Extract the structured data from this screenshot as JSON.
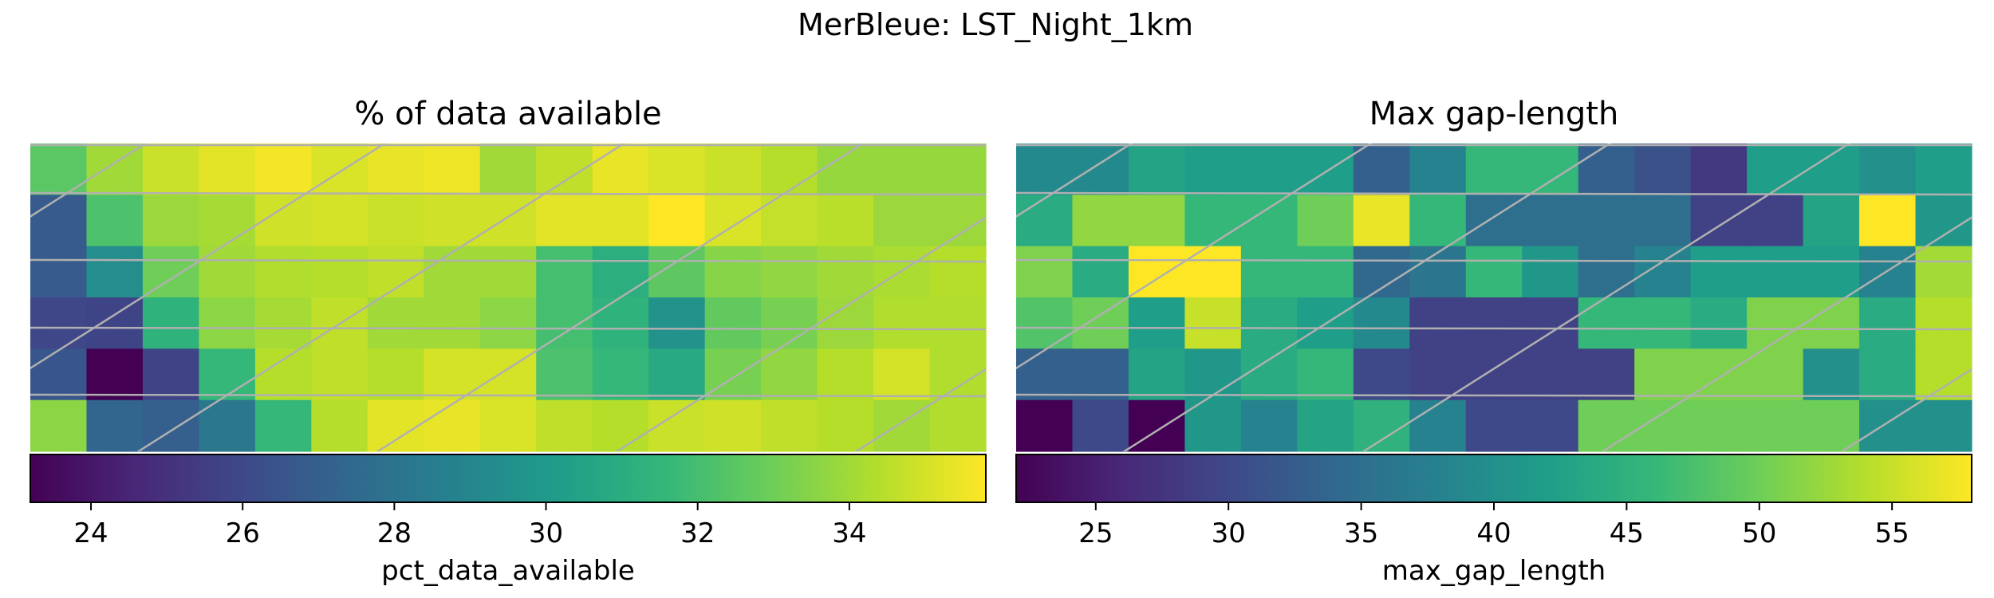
{
  "figure": {
    "suptitle": "MerBleue: LST_Night_1km"
  },
  "chart_data": [
    {
      "type": "heatmap",
      "title": "% of data available",
      "colorbar_label": "pct_data_available",
      "colormap": "viridis",
      "vmin": 23.2,
      "vmax": 35.8,
      "colorbar_ticks": [
        24,
        26,
        28,
        30,
        32,
        34
      ],
      "rows": 6,
      "cols": 17,
      "grid": true,
      "grid_color": "#b0b0b0",
      "values": [
        [
          32.5,
          34.0,
          34.8,
          35.3,
          35.6,
          35.1,
          35.4,
          35.5,
          34.0,
          34.6,
          35.4,
          35.1,
          34.8,
          34.4,
          33.8,
          33.8,
          33.8
        ],
        [
          26.8,
          32.2,
          33.9,
          34.1,
          34.9,
          35.0,
          34.8,
          34.9,
          34.9,
          35.3,
          35.3,
          35.8,
          35.1,
          34.7,
          34.5,
          33.9,
          33.9
        ],
        [
          26.8,
          29.4,
          33.0,
          34.0,
          34.3,
          34.4,
          34.6,
          34.0,
          34.0,
          32.0,
          31.1,
          32.6,
          33.5,
          33.7,
          34.0,
          34.2,
          34.4
        ],
        [
          25.9,
          25.8,
          31.3,
          33.6,
          34.1,
          34.6,
          34.0,
          34.0,
          33.6,
          32.0,
          31.3,
          29.6,
          32.7,
          33.2,
          33.9,
          34.3,
          34.3
        ],
        [
          26.6,
          23.2,
          25.8,
          31.6,
          34.4,
          34.6,
          34.4,
          35.0,
          35.0,
          32.2,
          31.6,
          30.8,
          33.2,
          33.7,
          34.4,
          35.0,
          34.3
        ],
        [
          33.6,
          27.3,
          27.0,
          28.2,
          31.6,
          34.4,
          35.3,
          35.4,
          35.1,
          34.6,
          34.4,
          34.8,
          34.9,
          34.6,
          34.4,
          34.0,
          34.3
        ]
      ]
    },
    {
      "type": "heatmap",
      "title": "Max gap-length",
      "colorbar_label": "max_gap_length",
      "colormap": "viridis",
      "vmin": 22.0,
      "vmax": 58.0,
      "colorbar_ticks": [
        25,
        30,
        35,
        40,
        45,
        50,
        55
      ],
      "rows": 6,
      "cols": 17,
      "grid": true,
      "grid_color": "#b0b0b0",
      "values": [
        [
          39,
          39,
          43,
          42,
          42,
          42,
          33,
          38,
          46,
          46,
          33,
          31,
          28,
          42,
          42,
          40,
          42
        ],
        [
          44,
          52,
          52,
          46,
          46,
          50,
          57,
          46,
          35,
          35,
          35,
          35,
          29,
          29,
          43,
          58,
          41
        ],
        [
          51,
          44,
          58,
          58,
          46,
          46,
          34,
          36,
          46,
          41,
          35,
          38,
          42,
          42,
          42,
          38,
          53
        ],
        [
          48,
          50,
          42,
          55,
          44,
          42,
          39,
          29,
          29,
          29,
          46,
          46,
          44,
          51,
          51,
          44,
          54
        ],
        [
          33,
          33,
          43,
          41,
          44,
          46,
          30,
          29,
          29,
          29,
          29,
          51,
          51,
          51,
          40,
          44,
          54
        ],
        [
          22,
          30,
          22,
          41,
          38,
          43,
          45,
          38,
          30,
          30,
          50,
          50,
          50,
          50,
          50,
          40,
          40
        ]
      ]
    }
  ]
}
